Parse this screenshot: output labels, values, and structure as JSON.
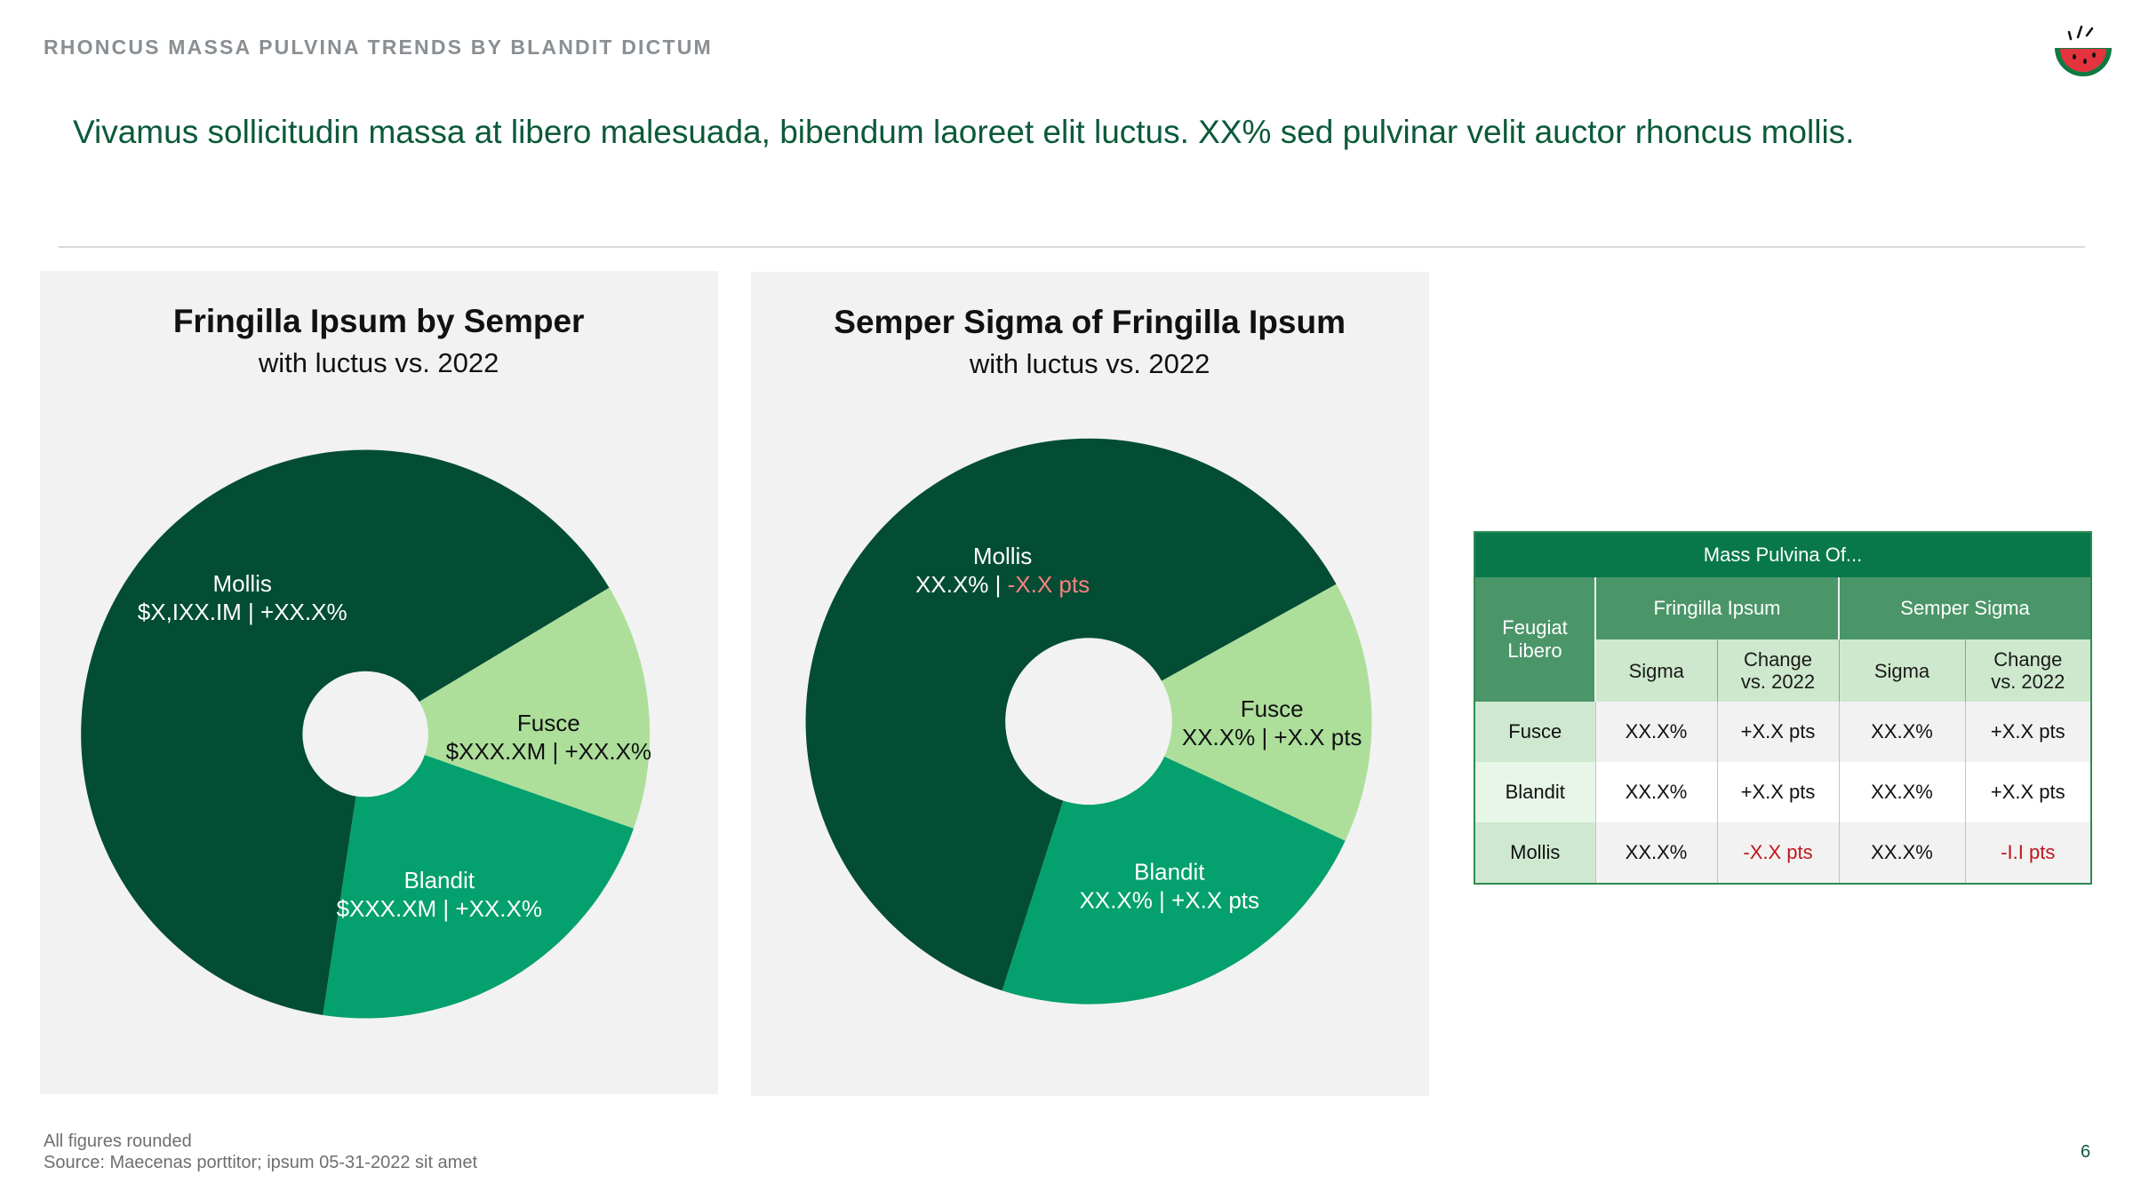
{
  "kicker": "RHONCUS MASSA PULVINA TRENDS BY BLANDIT DICTUM",
  "headline": "Vivamus sollicitudin massa at libero malesuada, bibendum laoreet elit luctus. XX% sed pulvinar velit auctor rhoncus mollis.",
  "logo_icon": "watermelon-icon",
  "colors": {
    "mollis": "#034d34",
    "fusce": "#addf9b",
    "blandit": "#04a06e",
    "neg_label": "#ff8080",
    "neg_table": "#c0161c",
    "headline": "#0b5a3a"
  },
  "chart_data": [
    {
      "type": "pie",
      "title": "Fringilla Ipsum by Semper",
      "subtitle": "with luctus vs. 2022",
      "categories": [
        "Mollis",
        "Fusce",
        "Blandit"
      ],
      "values": [
        64,
        14,
        22
      ],
      "labels": [
        {
          "name": "Mollis",
          "value": "$X,IXX.IM | +XX.X%"
        },
        {
          "name": "Fusce",
          "value": "$XXX.XM | +XX.X%"
        },
        {
          "name": "Blandit",
          "value": "$XXX.XM | +XX.X%"
        }
      ]
    },
    {
      "type": "pie",
      "title": "Semper Sigma of Fringilla Ipsum",
      "subtitle": "with luctus vs. 2022",
      "categories": [
        "Mollis",
        "Fusce",
        "Blandit"
      ],
      "values": [
        62,
        15,
        23
      ],
      "labels": [
        {
          "name": "Mollis",
          "value": "XX.X%",
          "sep": " | ",
          "change": "-X.X pts",
          "change_negative": true
        },
        {
          "name": "Fusce",
          "value": "XX.X% | +X.X pts"
        },
        {
          "name": "Blandit",
          "value": "XX.X% | +X.X pts"
        }
      ]
    },
    {
      "type": "table",
      "title": "Mass Pulvina Of...",
      "corner_header": "Feugiat Libero",
      "group_headers": [
        "Fringilla Ipsum",
        "Semper Sigma"
      ],
      "sub_headers": [
        [
          "Sigma"
        ],
        [
          "Change",
          "vs. 2022"
        ],
        [
          "Sigma"
        ],
        [
          "Change",
          "vs. 2022"
        ]
      ],
      "rows": [
        {
          "label": "Fusce",
          "cells": [
            "XX.X%",
            "+X.X pts",
            "XX.X%",
            "+X.X pts"
          ],
          "negative": [
            false,
            false,
            false,
            false
          ]
        },
        {
          "label": "Blandit",
          "cells": [
            "XX.X%",
            "+X.X pts",
            "XX.X%",
            "+X.X pts"
          ],
          "negative": [
            false,
            false,
            false,
            false
          ]
        },
        {
          "label": "Mollis",
          "cells": [
            "XX.X%",
            "-X.X pts",
            "XX.X%",
            "-I.I pts"
          ],
          "negative": [
            false,
            true,
            false,
            true
          ]
        }
      ]
    }
  ],
  "footnotes": [
    "All figures rounded",
    "Source: Maecenas porttitor; ipsum 05-31-2022 sit amet"
  ],
  "page_number": "6"
}
